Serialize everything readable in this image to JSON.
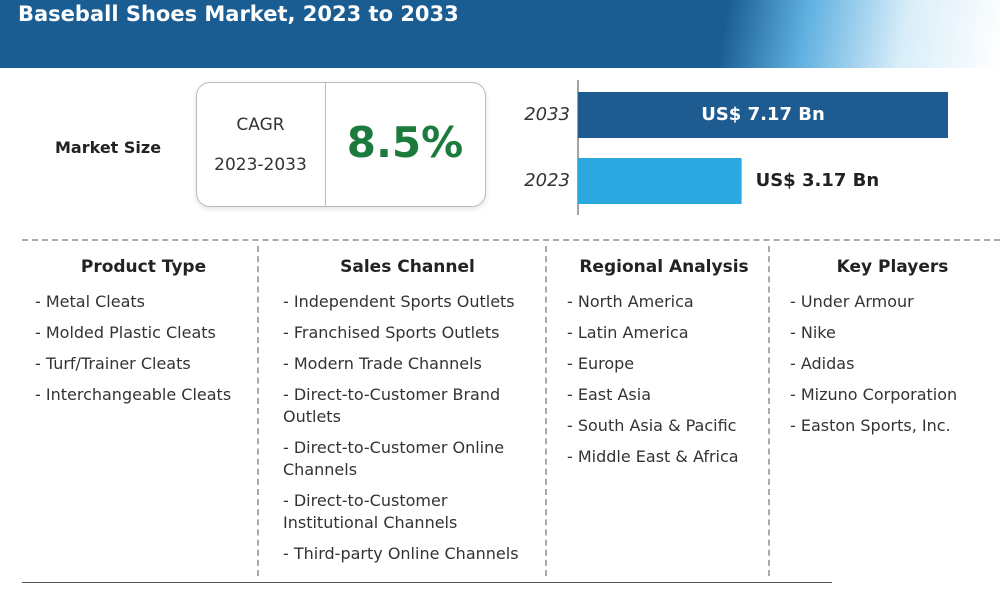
{
  "header": {
    "title": "Baseball Shoes Market, 2023 to 2033"
  },
  "market_size": {
    "label": "Market Size",
    "cagr_label": "CAGR",
    "cagr_period": "2023-2033",
    "cagr_value": "8.5%"
  },
  "chart_data": {
    "type": "bar",
    "orientation": "horizontal",
    "categories": [
      "2033",
      "2023"
    ],
    "values": [
      7.17,
      3.17
    ],
    "value_labels": [
      "US$ 7.17 Bn",
      "US$ 3.17 Bn"
    ],
    "colors": [
      "#1d5b91",
      "#2aa8df"
    ]
  },
  "segments": [
    {
      "heading": "Product Type",
      "items": [
        "- Metal Cleats",
        "- Molded Plastic Cleats",
        "- Turf/Trainer Cleats",
        "- Interchangeable Cleats"
      ]
    },
    {
      "heading": "Sales Channel",
      "items": [
        "- Independent Sports Outlets",
        "- Franchised Sports Outlets",
        "- Modern Trade Channels",
        "- Direct-to-Customer Brand Outlets",
        "- Direct-to-Customer Online Channels",
        "- Direct-to-Customer Institutional Channels",
        "- Third-party Online Channels"
      ]
    },
    {
      "heading": "Regional Analysis",
      "items": [
        "- North America",
        "- Latin America",
        "- Europe",
        "- East Asia",
        "- South Asia & Pacific",
        "- Middle East & Africa"
      ]
    },
    {
      "heading": "Key Players",
      "items": [
        "- Under Armour",
        "- Nike",
        "- Adidas",
        "- Mizuno Corporation",
        "- Easton Sports, Inc."
      ]
    }
  ]
}
